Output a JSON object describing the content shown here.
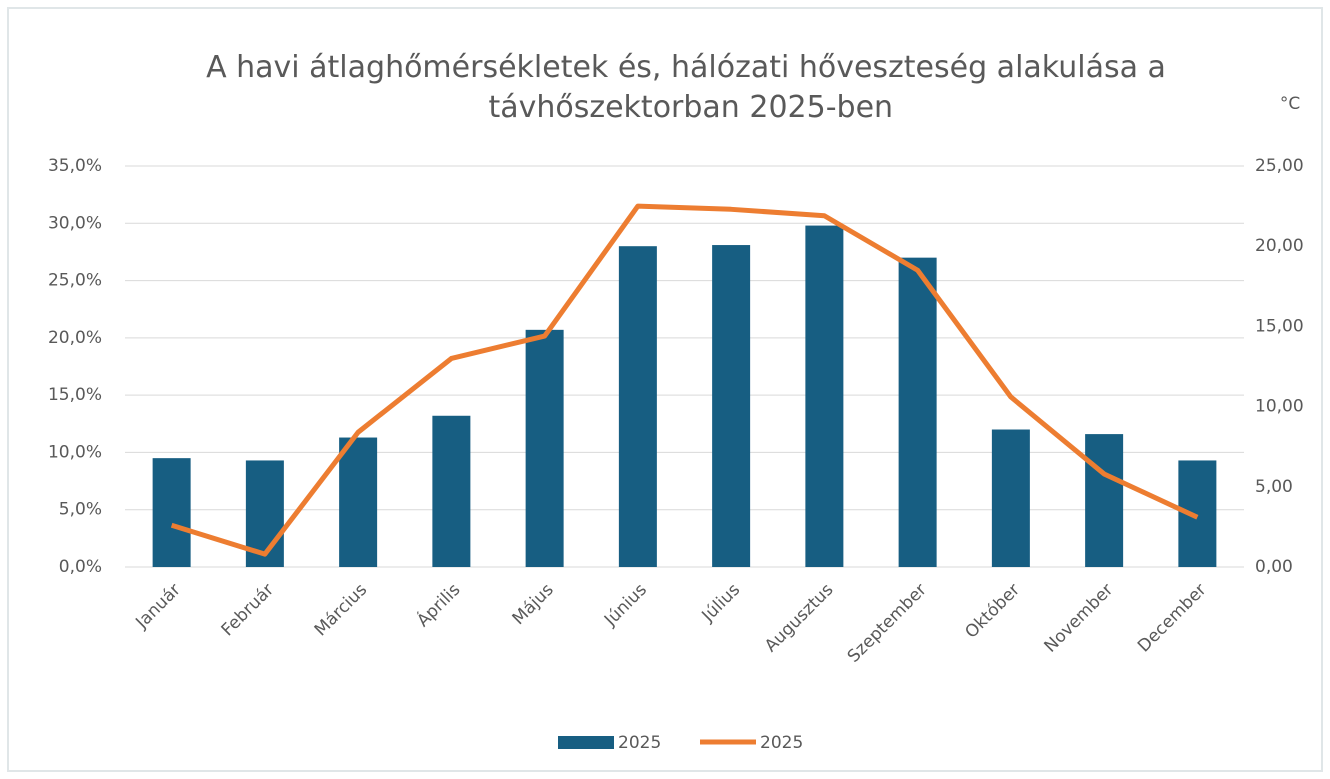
{
  "chart_data": {
    "type": "bar_line",
    "title": "A havi átlaghőmérsékletek és, hálózati hőveszteség alakulása a távhőszektorban 2025-ben",
    "y2_label": "°C",
    "categories": [
      "Január",
      "Február",
      "Március",
      "Április",
      "Május",
      "Június",
      "Július",
      "Augusztus",
      "Szeptember",
      "Október",
      "November",
      "December"
    ],
    "series": [
      {
        "name": "2025",
        "type": "bar",
        "color": "#175e82",
        "values": [
          9.5,
          9.3,
          11.3,
          13.2,
          20.7,
          28.0,
          28.1,
          29.8,
          27.0,
          12.0,
          11.6,
          9.3
        ]
      },
      {
        "name": "2025",
        "type": "line",
        "axis": "y2",
        "color": "#ed7d31",
        "values": [
          2.6,
          0.8,
          8.4,
          13.0,
          14.4,
          22.5,
          22.3,
          21.9,
          18.5,
          10.6,
          5.8,
          3.1
        ]
      }
    ],
    "ylim": [
      0,
      35
    ],
    "yticks": [
      {
        "value": 0,
        "label": "0,0%"
      },
      {
        "value": 5,
        "label": "5,0%"
      },
      {
        "value": 10,
        "label": "10,0%"
      },
      {
        "value": 15,
        "label": "15,0%"
      },
      {
        "value": 20,
        "label": "20,0%"
      },
      {
        "value": 25,
        "label": "25,0%"
      },
      {
        "value": 30,
        "label": "30,0%"
      },
      {
        "value": 35,
        "label": "35,0%"
      }
    ],
    "y2lim": [
      0,
      25
    ],
    "y2ticks": [
      {
        "value": 0,
        "label": "0,00"
      },
      {
        "value": 5,
        "label": "5,00"
      },
      {
        "value": 10,
        "label": "10,00"
      },
      {
        "value": 15,
        "label": "15,00"
      },
      {
        "value": 20,
        "label": "20,00"
      },
      {
        "value": 25,
        "label": "25,00"
      }
    ],
    "grid": true,
    "legend": "bottom"
  }
}
